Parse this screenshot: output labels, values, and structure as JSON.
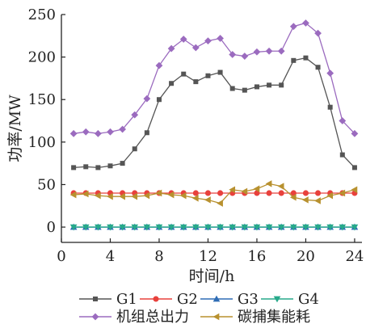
{
  "chart_data": {
    "type": "line",
    "title": "",
    "xlabel": "时间/h",
    "ylabel": "功率/MW",
    "xlim": [
      0,
      24.6
    ],
    "ylim": [
      -18,
      250
    ],
    "xticks": [
      0,
      4,
      8,
      12,
      16,
      20,
      24
    ],
    "yticks": [
      0,
      50,
      100,
      150,
      200,
      250
    ],
    "x": [
      1,
      2,
      3,
      4,
      5,
      6,
      7,
      8,
      9,
      10,
      11,
      12,
      13,
      14,
      15,
      16,
      17,
      18,
      19,
      20,
      21,
      22,
      23,
      24
    ],
    "grid": false,
    "legend_position": "bottom",
    "series": [
      {
        "name": "G1",
        "color": "#555555",
        "marker": "square",
        "values": [
          70,
          71,
          70,
          72,
          75,
          92,
          111,
          150,
          169,
          180,
          171,
          178,
          182,
          163,
          161,
          165,
          167,
          167,
          196,
          199,
          188,
          141,
          85,
          70
        ]
      },
      {
        "name": "G2",
        "color": "#e8413c",
        "marker": "circle",
        "values": [
          40,
          40,
          40,
          40,
          40,
          40,
          40,
          40,
          40,
          40,
          40,
          40,
          40,
          40,
          40,
          40,
          40,
          40,
          40,
          40,
          40,
          40,
          40,
          40
        ]
      },
      {
        "name": "G3",
        "color": "#2f6db5",
        "marker": "triangle-up",
        "values": [
          0,
          0,
          0,
          0,
          0,
          0,
          0,
          0,
          0,
          0,
          0,
          0,
          0,
          0,
          0,
          0,
          0,
          0,
          0,
          0,
          0,
          0,
          0,
          0
        ]
      },
      {
        "name": "G4",
        "color": "#27a98a",
        "marker": "triangle-down",
        "values": [
          0,
          0,
          0,
          0,
          0,
          0,
          0,
          0,
          0,
          0,
          0,
          0,
          0,
          0,
          0,
          0,
          0,
          0,
          0,
          0,
          0,
          0,
          0,
          0
        ]
      },
      {
        "name": "机组总出力",
        "color": "#9b6bbf",
        "marker": "diamond",
        "values": [
          110,
          112,
          110,
          112,
          115,
          132,
          151,
          190,
          210,
          221,
          211,
          219,
          222,
          203,
          201,
          206,
          207,
          207,
          236,
          240,
          228,
          181,
          125,
          110
        ]
      },
      {
        "name": "碳捕集能耗",
        "color": "#b8912f",
        "marker": "triangle-left",
        "values": [
          38,
          39,
          37,
          36,
          36,
          36,
          37,
          40,
          38,
          37,
          34,
          32,
          28,
          44,
          42,
          45,
          51,
          48,
          35,
          32,
          31,
          37,
          40,
          44
        ]
      }
    ]
  }
}
